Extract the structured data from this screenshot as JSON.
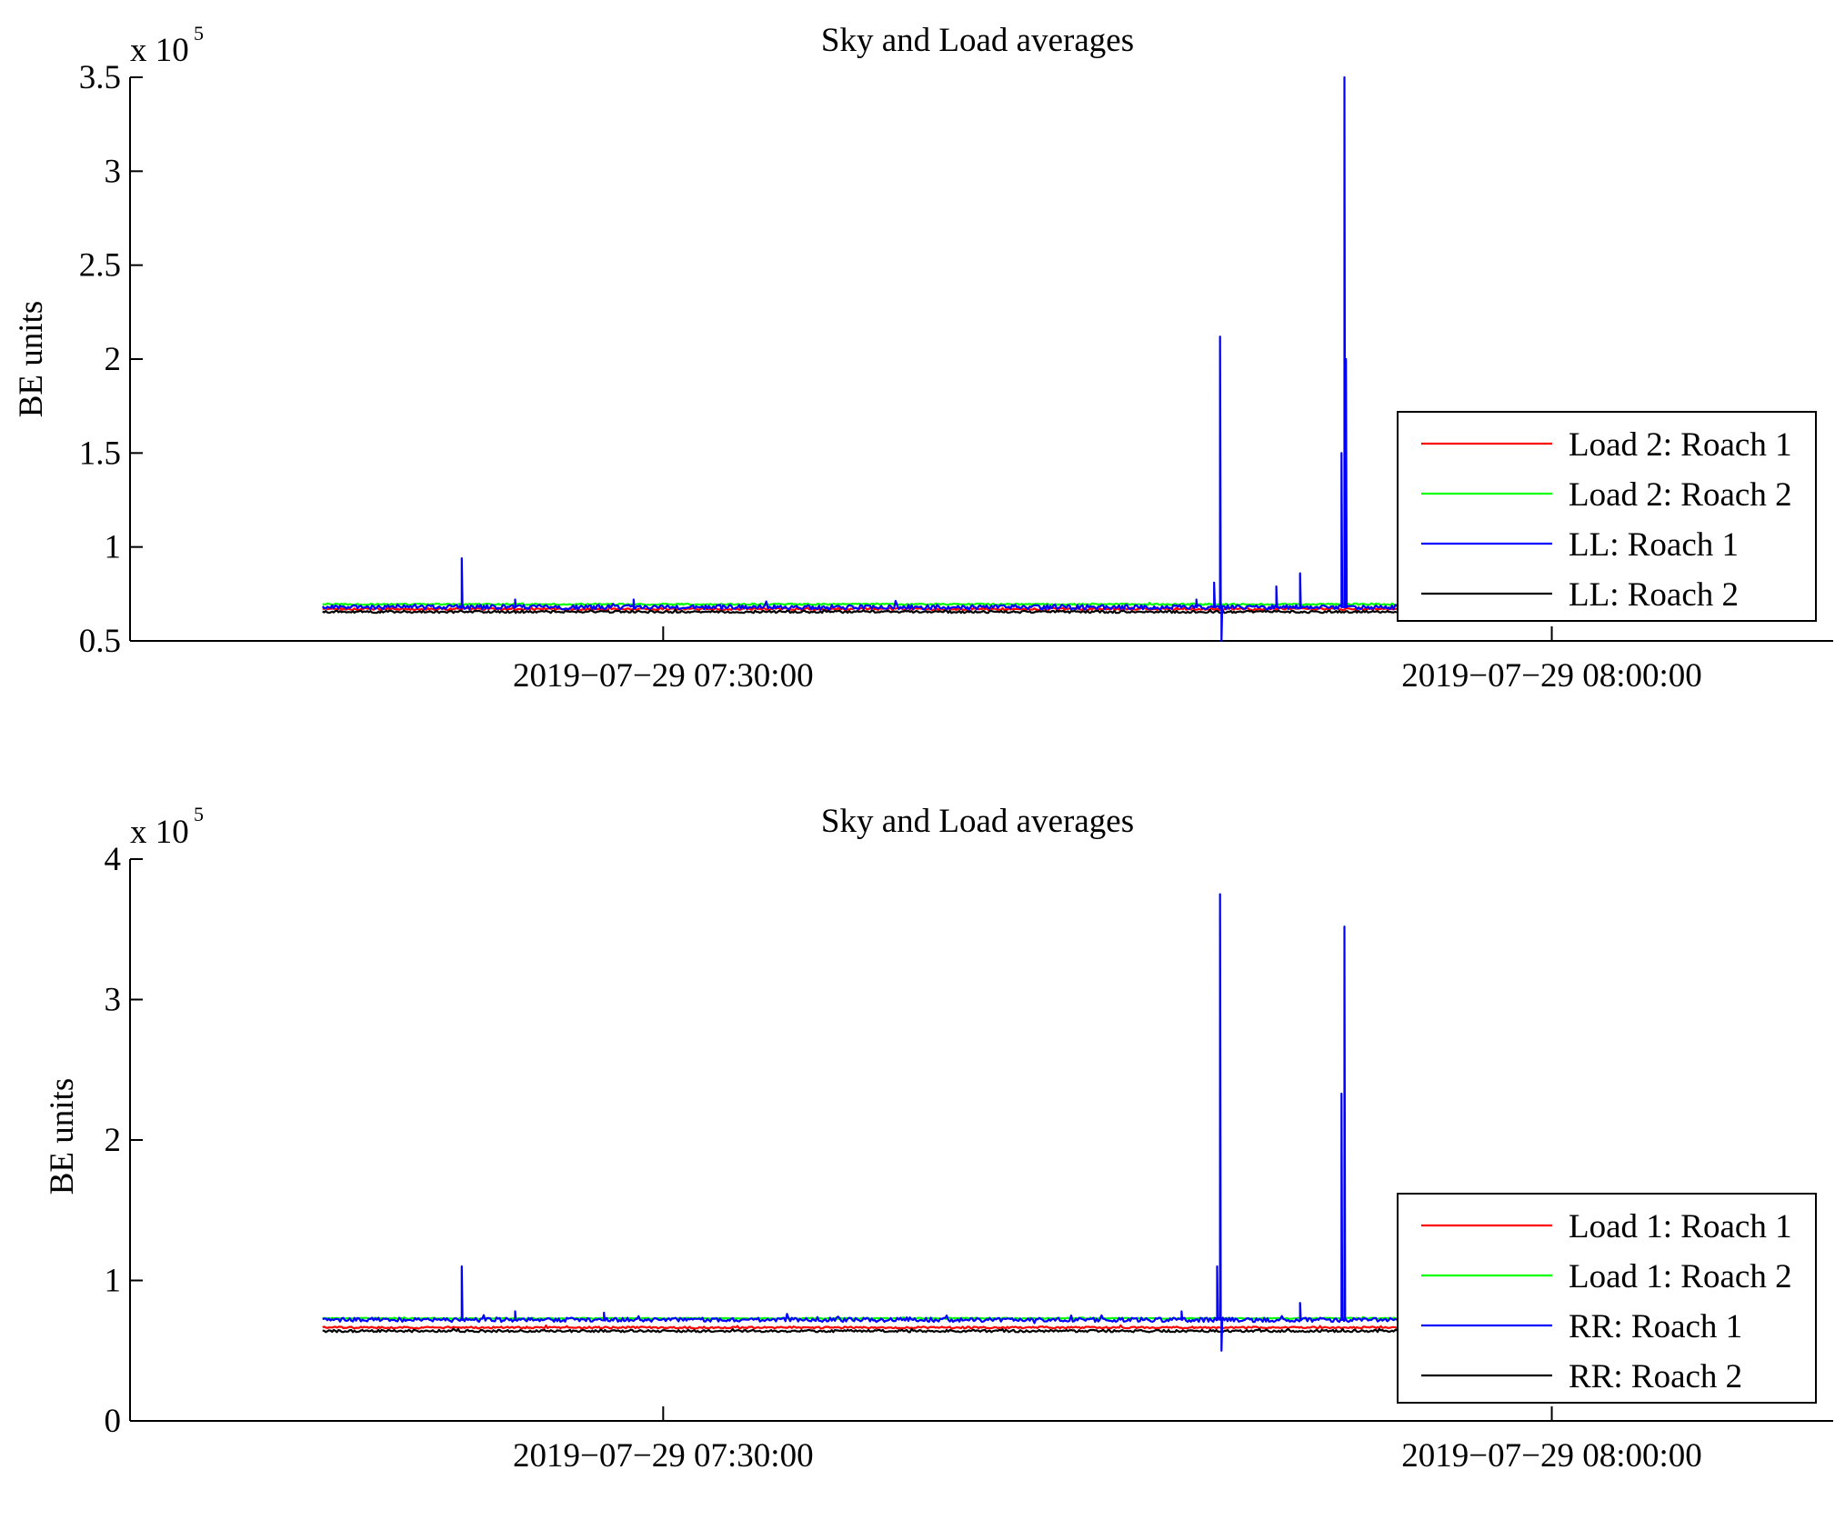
{
  "chart_data": [
    {
      "type": "line",
      "title": "Sky and Load averages",
      "ylabel": "BE units",
      "xlabel": "",
      "y_multiplier": "x 10",
      "y_multiplier_exponent": "5",
      "ylim": [
        0.5,
        3.5
      ],
      "yticks": [
        0.5,
        1,
        1.5,
        2,
        2.5,
        3,
        3.5
      ],
      "ytick_labels": [
        "0.5",
        "1",
        "1.5",
        "2",
        "2.5",
        "3",
        "3.5"
      ],
      "xlim_minutes": [
        -18,
        39.5
      ],
      "xticks_minutes": [
        0,
        30
      ],
      "xtick_labels": [
        "2019−07−29 07:30:00",
        "2019−07−29 08:00:00"
      ],
      "data_x_range_minutes": [
        -11.5,
        37
      ],
      "legend_position": "bottom-right",
      "series": [
        {
          "name": "Load 2: Roach 1",
          "color": "#ff0000",
          "base": 0.67,
          "noise": 0.006,
          "spikes": []
        },
        {
          "name": "Load 2: Roach 2",
          "color": "#00ff00",
          "base": 0.695,
          "noise": 0.004,
          "spikes": []
        },
        {
          "name": "LL: Roach 1",
          "color": "#0000ff",
          "base": 0.68,
          "noise": 0.012,
          "spikes": [
            [
              -6.8,
              0.94
            ],
            [
              -5.0,
              0.72
            ],
            [
              -1.0,
              0.72
            ],
            [
              18.0,
              0.72
            ],
            [
              18.6,
              0.81
            ],
            [
              18.8,
              2.12
            ],
            [
              18.85,
              0.5
            ],
            [
              20.7,
              0.79
            ],
            [
              21.5,
              0.86
            ],
            [
              22.9,
              1.5
            ],
            [
              23.0,
              3.5
            ],
            [
              23.05,
              2.0
            ]
          ]
        },
        {
          "name": "LL: Roach 2",
          "color": "#000000",
          "base": 0.655,
          "noise": 0.006,
          "spikes": []
        }
      ]
    },
    {
      "type": "line",
      "title": "Sky and Load averages",
      "ylabel": "BE units",
      "xlabel": "",
      "y_multiplier": "x 10",
      "y_multiplier_exponent": "5",
      "ylim": [
        0,
        4
      ],
      "yticks": [
        0,
        1,
        2,
        3,
        4
      ],
      "ytick_labels": [
        "0",
        "1",
        "2",
        "3",
        "4"
      ],
      "xlim_minutes": [
        -18,
        39.5
      ],
      "xticks_minutes": [
        0,
        30
      ],
      "xtick_labels": [
        "2019−07−29 07:30:00",
        "2019−07−29 08:00:00"
      ],
      "data_x_range_minutes": [
        -11.5,
        37
      ],
      "legend_position": "bottom-right",
      "series": [
        {
          "name": "Load 1: Roach 1",
          "color": "#ff0000",
          "base": 0.665,
          "noise": 0.006,
          "spikes": []
        },
        {
          "name": "Load 1: Roach 2",
          "color": "#00ff00",
          "base": 0.73,
          "noise": 0.004,
          "spikes": []
        },
        {
          "name": "RR: Roach 1",
          "color": "#0000ff",
          "base": 0.72,
          "noise": 0.015,
          "spikes": [
            [
              -6.8,
              1.1
            ],
            [
              -5.0,
              0.78
            ],
            [
              -2.0,
              0.77
            ],
            [
              17.5,
              0.78
            ],
            [
              18.7,
              1.1
            ],
            [
              18.8,
              3.75
            ],
            [
              18.85,
              0.5
            ],
            [
              21.5,
              0.84
            ],
            [
              22.9,
              2.33
            ],
            [
              23.0,
              3.52
            ]
          ]
        },
        {
          "name": "RR: Roach 2",
          "color": "#000000",
          "base": 0.64,
          "noise": 0.008,
          "spikes": []
        }
      ]
    }
  ]
}
